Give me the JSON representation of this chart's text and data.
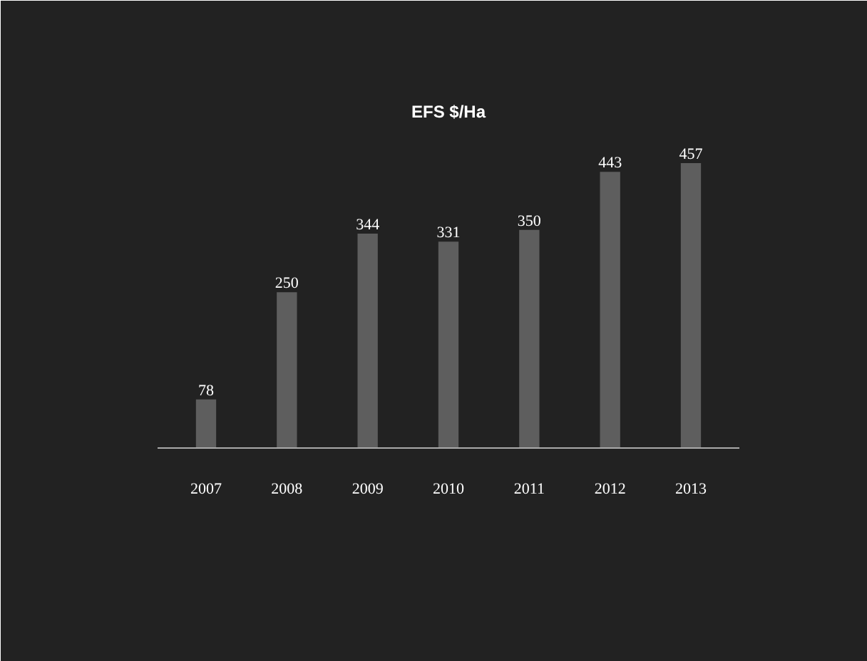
{
  "chart_data": {
    "type": "bar",
    "title": "EFS $/Ha",
    "categories": [
      "2007",
      "2008",
      "2009",
      "2010",
      "2011",
      "2012",
      "2013"
    ],
    "values": [
      78,
      250,
      344,
      331,
      350,
      443,
      457
    ],
    "color": "#5e5e5e",
    "data_labels": true
  }
}
